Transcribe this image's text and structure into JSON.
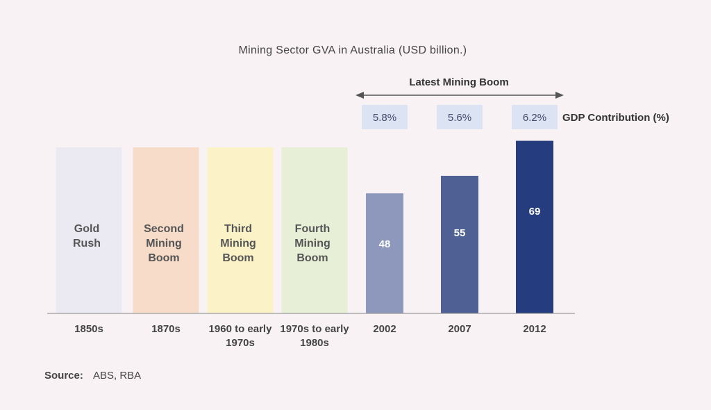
{
  "chart_data": {
    "type": "bar",
    "title": "Mining Sector GVA in Australia (USD billion.)",
    "xlabel": "",
    "ylabel": "",
    "categories": [
      "1850s",
      "1870s",
      "1960 to early 1970s",
      "1970s to early 1980s",
      "2002",
      "2007",
      "2012"
    ],
    "eras": [
      {
        "category": "1850s",
        "name": [
          "Gold",
          "Rush"
        ],
        "color": "#ebeaf3"
      },
      {
        "category": "1870s",
        "name": [
          "Second",
          "Mining",
          "Boom"
        ],
        "color": "#f6dcc9"
      },
      {
        "category": "1960 to early 1970s",
        "name": [
          "Third",
          "Mining",
          "Boom"
        ],
        "color": "#fbf2c8"
      },
      {
        "category": "1970s to early 1980s",
        "name": [
          "Fourth",
          "Mining",
          "Boom"
        ],
        "color": "#e8efd7"
      }
    ],
    "series": [
      {
        "values": [
          null,
          null,
          null,
          null,
          48,
          55,
          69
        ],
        "colors": [
          "",
          "",
          "",
          "",
          "#8e98bd",
          "#4f6194",
          "#253d7e"
        ]
      }
    ],
    "gdp_contribution": {
      "label": "GDP Contribution (%)",
      "values": [
        "5.8%",
        "5.6%",
        "6.2%"
      ],
      "box_color": "#dce3f2"
    },
    "annotation": "Latest Mining Boom",
    "ylim": [
      0,
      75
    ]
  },
  "source": {
    "label": "Source:",
    "text": "ABS, RBA"
  }
}
